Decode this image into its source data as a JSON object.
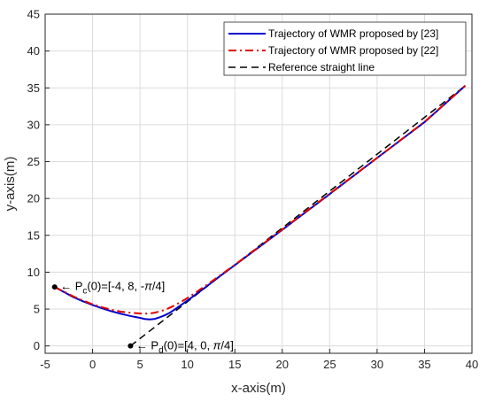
{
  "chart_data": {
    "type": "line",
    "xlabel": "x-axis(m)",
    "ylabel": "y-axis(m)",
    "xlim": [
      -5,
      40
    ],
    "ylim": [
      -1,
      45
    ],
    "xticks": [
      "-5",
      "0",
      "5",
      "10",
      "15",
      "20",
      "25",
      "30",
      "35",
      "40"
    ],
    "yticks": [
      "0",
      "5",
      "10",
      "15",
      "20",
      "25",
      "30",
      "35",
      "40",
      "45"
    ],
    "grid": true,
    "legend_position": "top-right",
    "series": [
      {
        "name": "Trajectory of WMR proposed by [23]",
        "color": "#0000cc",
        "style": "solid",
        "x": [
          -4,
          -3,
          -2,
          -1,
          0,
          1,
          2,
          3,
          4,
          5,
          5.5,
          6,
          6.5,
          7,
          7.5,
          8,
          8.5,
          9,
          9.5,
          10,
          11,
          12,
          13,
          15,
          20,
          25,
          30,
          35,
          39.3
        ],
        "y": [
          8,
          7.3,
          6.6,
          6.05,
          5.55,
          5.1,
          4.7,
          4.35,
          4.05,
          3.8,
          3.65,
          3.6,
          3.65,
          3.85,
          4.1,
          4.4,
          4.8,
          5.25,
          5.7,
          6.15,
          7.1,
          8.05,
          9.05,
          10.95,
          15.75,
          20.6,
          25.5,
          30.35,
          35.3
        ]
      },
      {
        "name": "Trajectory of WMR proposed by [22]",
        "color": "#e00000",
        "style": "dashdot",
        "x": [
          -4,
          -3,
          -2,
          -1,
          0,
          1,
          2,
          3,
          4,
          5,
          5.5,
          6,
          6.5,
          7,
          7.5,
          8,
          8.5,
          9,
          9.5,
          10,
          11,
          12,
          13,
          15,
          20,
          25,
          30,
          35,
          39.3
        ],
        "y": [
          8,
          7.35,
          6.7,
          6.15,
          5.65,
          5.25,
          4.9,
          4.65,
          4.5,
          4.4,
          4.38,
          4.4,
          4.5,
          4.65,
          4.85,
          5.1,
          5.4,
          5.75,
          6.1,
          6.5,
          7.35,
          8.25,
          9.15,
          11.0,
          15.8,
          20.65,
          25.5,
          30.4,
          35.3
        ]
      },
      {
        "name": "Reference straight line",
        "color": "#000000",
        "style": "dashed",
        "x": [
          4,
          39.3
        ],
        "y": [
          0,
          35.3
        ]
      }
    ],
    "points": [
      {
        "x": -4,
        "y": 8
      },
      {
        "x": 4,
        "y": 0
      }
    ],
    "annotations": [
      {
        "prefix": "← P",
        "sub": "c",
        "rest": "(0)=[-4, 8, -",
        "pi": "π",
        "tail": "/4]",
        "x": -3.4,
        "y": 8.1
      },
      {
        "prefix": "← P",
        "sub": "d",
        "rest": "(0)=[4, 0, ",
        "pi": "π",
        "tail": "/4]",
        "x": 4.6,
        "y": 0.1
      }
    ]
  }
}
